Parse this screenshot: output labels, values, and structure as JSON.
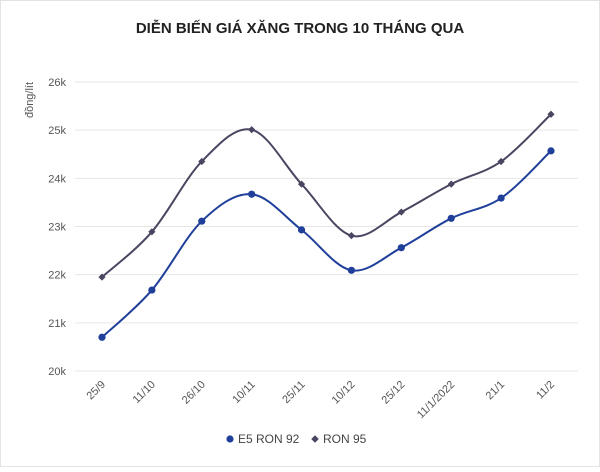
{
  "chart_data": {
    "type": "line",
    "title": "DIỄN BIẾN GIÁ XĂNG TRONG 10 THÁNG QUA",
    "ylabel": "đồng/lít",
    "xlabel": "",
    "categories": [
      "25/9",
      "11/10",
      "26/10",
      "10/11",
      "25/11",
      "10/12",
      "25/12",
      "11/1/2022",
      "21/1",
      "11/2"
    ],
    "y_ticks": [
      "20k",
      "21k",
      "22k",
      "23k",
      "24k",
      "25k",
      "26k"
    ],
    "ylim": [
      20000,
      26000
    ],
    "grid": "horizontal",
    "legend_position": "bottom",
    "series": [
      {
        "name": "E5 RON 92",
        "color": "#1f3f9a",
        "marker": "circle",
        "values": [
          20700,
          21680,
          23110,
          23670,
          22930,
          22090,
          22560,
          23170,
          23590,
          24570
        ]
      },
      {
        "name": "RON 95",
        "color": "#4a4560",
        "marker": "diamond",
        "values": [
          21950,
          22890,
          24350,
          25010,
          23880,
          22810,
          23300,
          23880,
          24350,
          25330
        ]
      }
    ]
  }
}
